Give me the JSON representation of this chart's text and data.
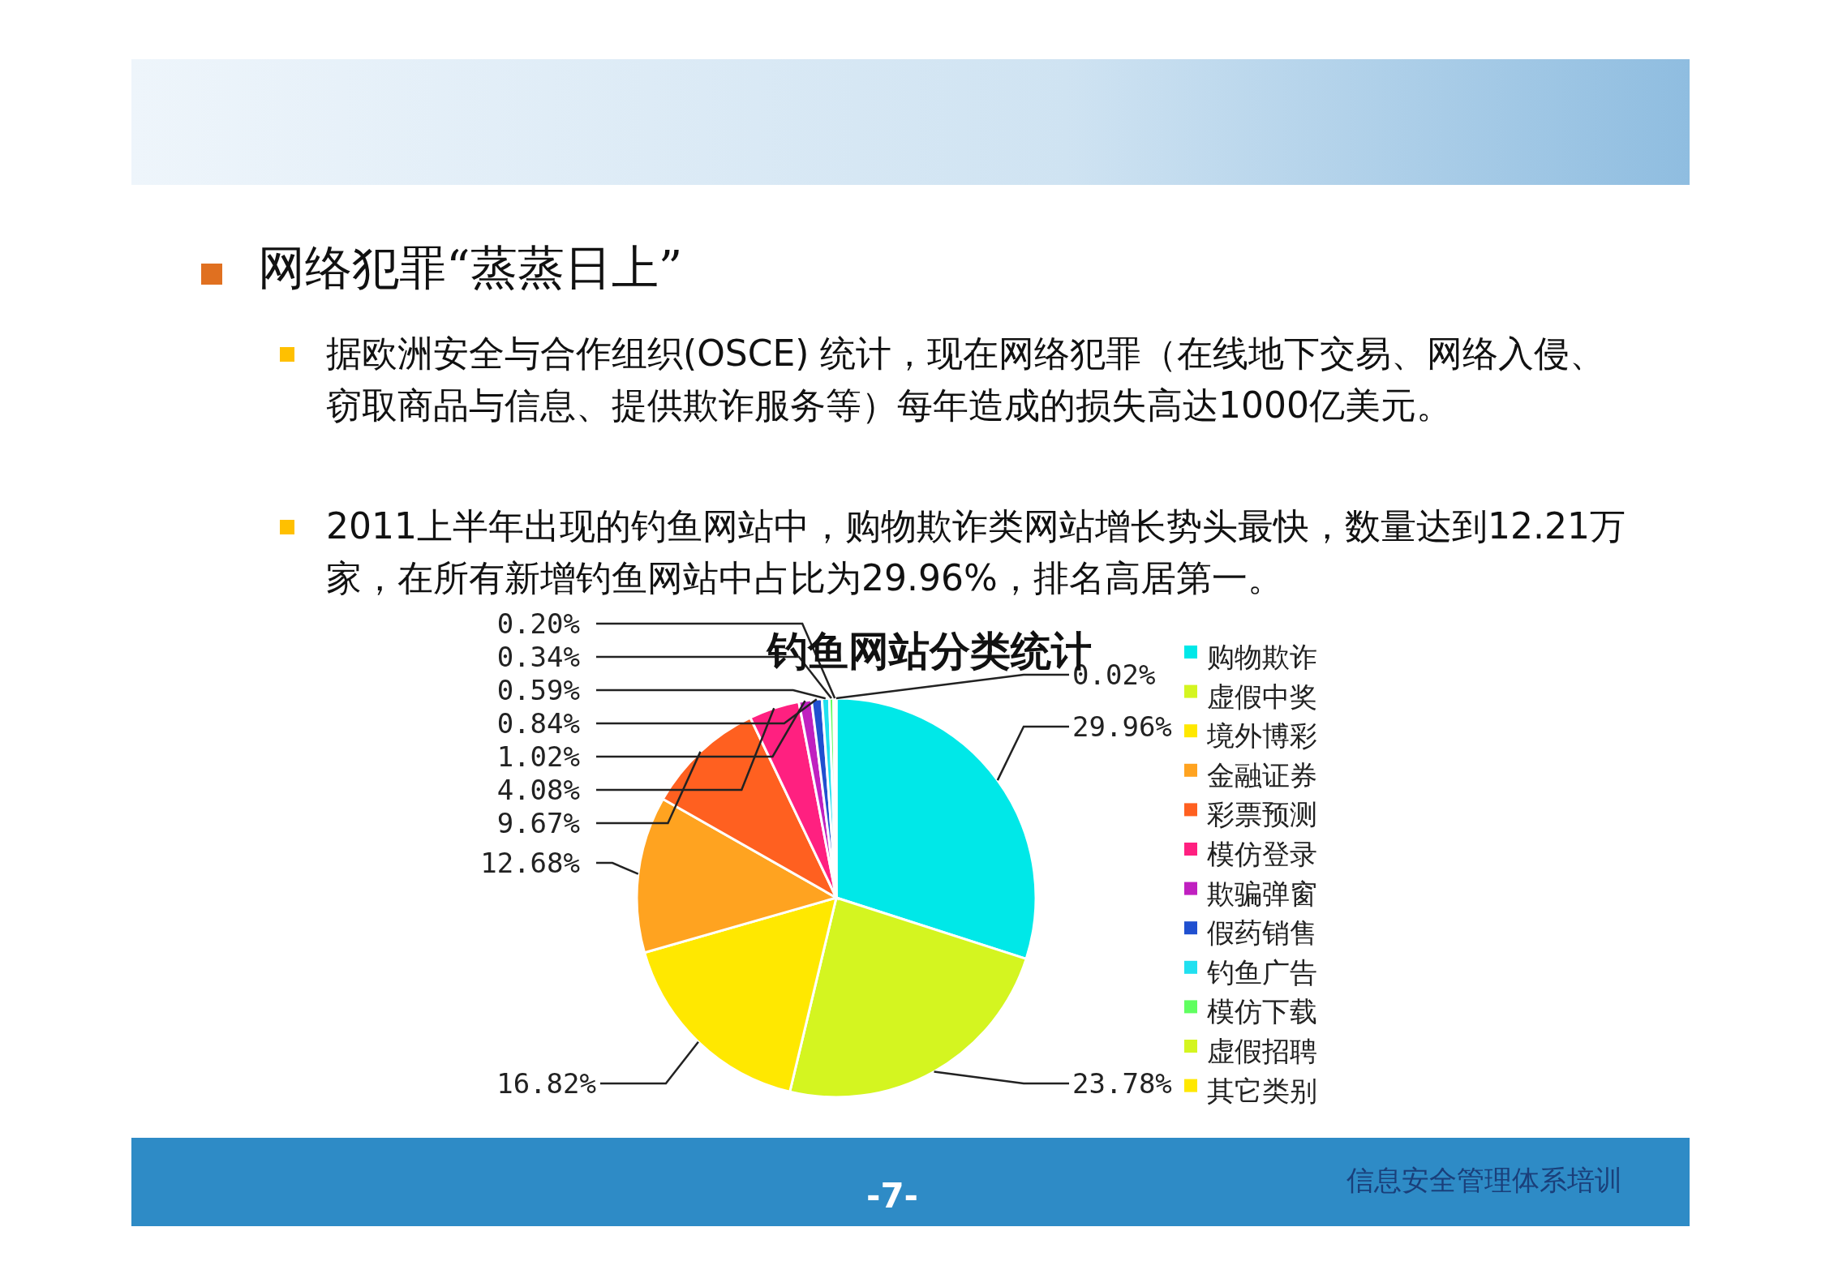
{
  "chart_data": {
    "type": "pie",
    "title": "钓鱼网站分类统计",
    "categories": [
      "购物欺诈",
      "虚假中奖",
      "境外博彩",
      "金融证券",
      "彩票预测",
      "模仿登录",
      "欺骗弹窗",
      "假药销售",
      "钓鱼广告",
      "模仿下载",
      "虚假招聘",
      "其它类别"
    ],
    "values": [
      29.96,
      23.78,
      16.82,
      12.68,
      9.67,
      4.08,
      1.02,
      0.84,
      0.59,
      0.34,
      0.2,
      0.02
    ],
    "value_labels": [
      "29.96%",
      "23.78%",
      "16.82%",
      "12.68%",
      "9.67%",
      "4.08%",
      "1.02%",
      "0.84%",
      "0.59%",
      "0.34%",
      "0.20%",
      "0.02%"
    ],
    "colors": [
      "#00e8e8",
      "#d4f520",
      "#ffe800",
      "#ffa320",
      "#ff6020",
      "#ff2080",
      "#c020c0",
      "#2050d0",
      "#20e0f0",
      "#60ff60",
      "#d4f520",
      "#ffe800"
    ],
    "legend": "right",
    "annotations": [
      "网络犯罪“蒸蒸日上”",
      "据欧洲安全与合作组织(OSCE) 统计，现在网络犯罪（在线地下交易、网络入侵、窃取商品与信息、提供欺诈服务等）每年造成的损失高达1000亿美元。",
      "2011上半年出现的钓鱼网站中，购物欺诈类网站增长势头最快，数量达到12.21万家，在所有新增钓鱼网站中占比为29.96%，排名高居第一。",
      "-7-",
      "信息安全管理体系培训"
    ]
  }
}
